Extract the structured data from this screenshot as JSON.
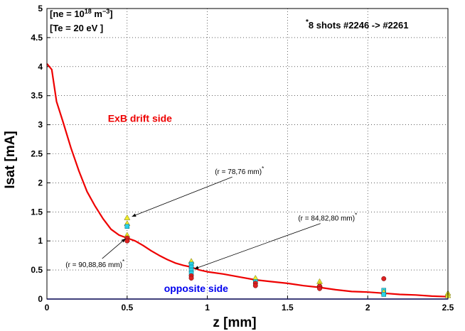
{
  "chart_data": {
    "type": "line",
    "title": "",
    "xlabel": "z [mm]",
    "ylabel": "Isat [mA]",
    "xlim": [
      0,
      2.5
    ],
    "ylim": [
      0,
      5
    ],
    "xticks": [
      "0",
      "0.5",
      "1",
      "1.5",
      "2",
      "2.5"
    ],
    "yticks": [
      "0",
      "0.5",
      "1",
      "1.5",
      "2",
      "2.5",
      "3",
      "3.5",
      "4",
      "4.5",
      "5"
    ],
    "grid": true,
    "info_lines": [
      "[ne = 10",
      "18",
      " m",
      "−3",
      "]",
      "[Te = 20 eV ]"
    ],
    "shots_label": {
      "star": "*",
      "text": "8 shots #2246 -> #2261"
    },
    "series": [
      {
        "name": "ExB drift side",
        "color": "#ee0000",
        "x": [
          0.0,
          0.03,
          0.06,
          0.1,
          0.15,
          0.2,
          0.25,
          0.3,
          0.35,
          0.4,
          0.45,
          0.5,
          0.55,
          0.6,
          0.65,
          0.7,
          0.75,
          0.8,
          0.85,
          0.9,
          0.95,
          1.0,
          1.1,
          1.2,
          1.3,
          1.4,
          1.5,
          1.6,
          1.7,
          1.8,
          1.9,
          2.0,
          2.1,
          2.2,
          2.3,
          2.4,
          2.5
        ],
        "y": [
          4.05,
          3.95,
          3.4,
          3.05,
          2.6,
          2.2,
          1.85,
          1.6,
          1.38,
          1.2,
          1.1,
          1.05,
          1.0,
          0.92,
          0.83,
          0.75,
          0.68,
          0.62,
          0.58,
          0.55,
          0.5,
          0.47,
          0.43,
          0.38,
          0.33,
          0.3,
          0.27,
          0.23,
          0.2,
          0.16,
          0.13,
          0.12,
          0.1,
          0.08,
          0.07,
          0.05,
          0.04
        ]
      },
      {
        "name": "opposite side",
        "color": "#0000ee",
        "x": [
          0.0,
          2.5
        ],
        "y": [
          0.0,
          0.0
        ]
      }
    ],
    "scatter_points": [
      {
        "x": 0.5,
        "y": 1.4,
        "color": "#f2ee2a"
      },
      {
        "x": 0.5,
        "y": 1.3,
        "color": "#f2ee2a"
      },
      {
        "x": 0.5,
        "y": 1.25,
        "color": "#2ad0e8"
      },
      {
        "x": 0.5,
        "y": 1.1,
        "color": "#f2ee2a"
      },
      {
        "x": 0.5,
        "y": 1.05,
        "color": "#dd2222"
      },
      {
        "x": 0.5,
        "y": 1.0,
        "color": "#dd2222"
      },
      {
        "x": 0.9,
        "y": 0.65,
        "color": "#f2ee2a"
      },
      {
        "x": 0.9,
        "y": 0.6,
        "color": "#2ad0e8"
      },
      {
        "x": 0.9,
        "y": 0.55,
        "color": "#2ad0e8"
      },
      {
        "x": 0.9,
        "y": 0.5,
        "color": "#2ad0e8"
      },
      {
        "x": 0.9,
        "y": 0.45,
        "color": "#2ad0e8"
      },
      {
        "x": 0.9,
        "y": 0.4,
        "color": "#dd2222"
      },
      {
        "x": 0.9,
        "y": 0.36,
        "color": "#dd2222"
      },
      {
        "x": 1.3,
        "y": 0.36,
        "color": "#f2ee2a"
      },
      {
        "x": 1.3,
        "y": 0.3,
        "color": "#2ad0e8"
      },
      {
        "x": 1.3,
        "y": 0.27,
        "color": "#dd2222"
      },
      {
        "x": 1.3,
        "y": 0.23,
        "color": "#dd2222"
      },
      {
        "x": 1.7,
        "y": 0.3,
        "color": "#f2ee2a"
      },
      {
        "x": 1.7,
        "y": 0.25,
        "color": "#f2ee2a"
      },
      {
        "x": 1.7,
        "y": 0.22,
        "color": "#dd2222"
      },
      {
        "x": 1.7,
        "y": 0.18,
        "color": "#dd2222"
      },
      {
        "x": 2.1,
        "y": 0.35,
        "color": "#dd2222"
      },
      {
        "x": 2.1,
        "y": 0.15,
        "color": "#2ad0e8"
      },
      {
        "x": 2.1,
        "y": 0.12,
        "color": "#f2ee2a"
      },
      {
        "x": 2.1,
        "y": 0.08,
        "color": "#2ad0e8"
      },
      {
        "x": 2.5,
        "y": 0.1,
        "color": "#f2ee2a"
      },
      {
        "x": 2.5,
        "y": 0.06,
        "color": "#f2ee2a"
      }
    ],
    "annotations": [
      {
        "text": "(r = 78,76 mm)",
        "star": "*",
        "text_x": 1.2,
        "text_y": 2.15,
        "arrow_to": [
          0.53,
          1.42
        ]
      },
      {
        "text": "(r = 84,82,80 mm)",
        "star": "*",
        "text_x": 1.75,
        "text_y": 1.35,
        "arrow_to": [
          0.92,
          0.52
        ]
      },
      {
        "text": "(r = 90,88,86 mm)",
        "star": "*",
        "text_x": 0.3,
        "text_y": 0.55,
        "arrow_to": [
          0.49,
          1.04
        ]
      }
    ],
    "series_labels": [
      {
        "text": "ExB drift side",
        "color": "#ee0000",
        "x": 0.38,
        "y": 3.05
      },
      {
        "text": "opposite side",
        "color": "#0000ee",
        "x": 0.73,
        "y": 0.12
      }
    ]
  }
}
